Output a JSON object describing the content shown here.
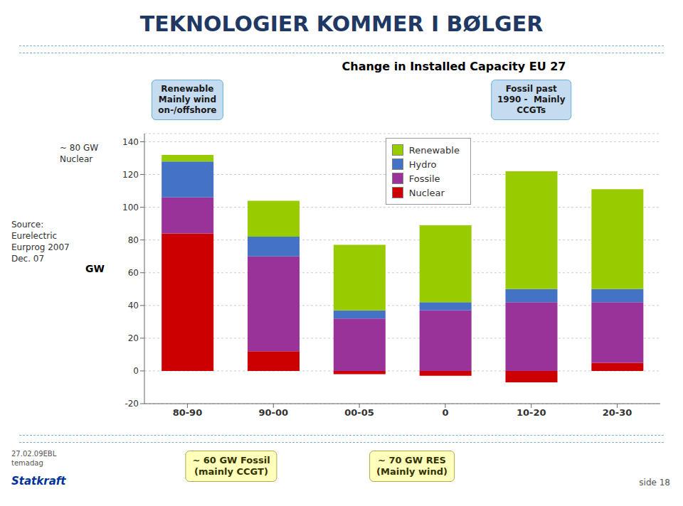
{
  "chart_data": {
    "type": "bar",
    "stacked": true,
    "title": "TEKNOLOGIER KOMMER I BØLGER",
    "subtitle": "Change in Installed Capacity EU 27",
    "categories": [
      "80-90",
      "90-00",
      "00-05",
      "0",
      "10-20",
      "20-30"
    ],
    "series": [
      {
        "name": "Nuclear",
        "color": "#CC0000",
        "values": [
          84,
          12,
          -2,
          -3,
          -7,
          5
        ]
      },
      {
        "name": "Fossile",
        "color": "#993399",
        "values": [
          22,
          58,
          32,
          37,
          42,
          37
        ]
      },
      {
        "name": "Hydro",
        "color": "#4472C4",
        "values": [
          22,
          12,
          5,
          5,
          8,
          8
        ]
      },
      {
        "name": "Renewable",
        "color": "#99CC00",
        "values": [
          4,
          22,
          40,
          47,
          72,
          61
        ]
      }
    ],
    "ylabel": "GW",
    "ylim": [
      -20,
      145
    ],
    "yticks": [
      -20,
      0,
      20,
      40,
      60,
      80,
      100,
      120,
      140
    ],
    "grid": true,
    "legend": "top",
    "annotations": [
      {
        "text": "Renewable\nMainly wind\non-/offshore"
      },
      {
        "text": "Fossil past\n1990 -  Mainly\nCCGTs"
      },
      {
        "text": "~ 80 GW\nNuclear"
      },
      {
        "text": "~ 60 GW Fossil\n(mainly CCGT)"
      },
      {
        "text": "~ 70 GW RES\n(Mainly wind)"
      },
      {
        "text": "Source:\nEurelectric\nEurprog 2007\nDec. 07"
      },
      {
        "text": "27.02.09EBL\ntemadag"
      },
      {
        "text": "Statkraft"
      },
      {
        "text": "side 18"
      }
    ]
  }
}
